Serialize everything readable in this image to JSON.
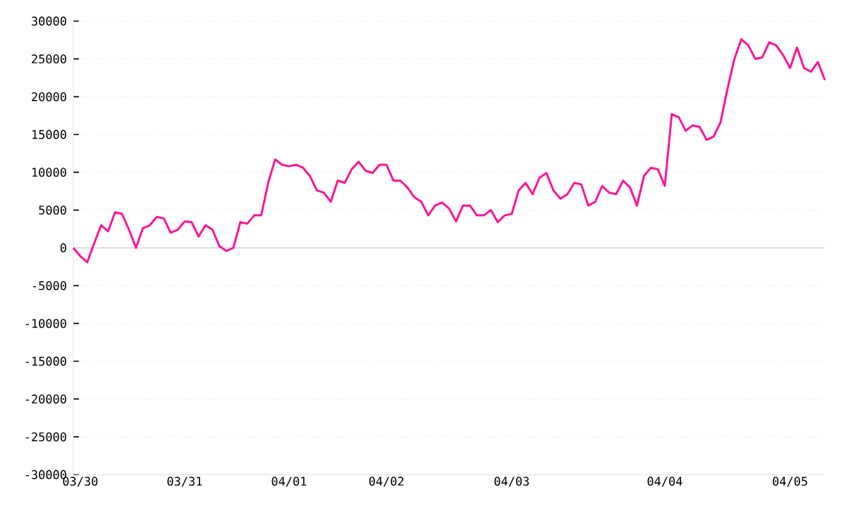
{
  "chart_data": {
    "type": "line",
    "categories": [
      null,
      "03/30",
      null,
      null,
      null,
      null,
      null,
      null,
      null,
      null,
      null,
      null,
      null,
      null,
      null,
      null,
      "03/31",
      null,
      null,
      null,
      null,
      null,
      null,
      null,
      null,
      null,
      null,
      null,
      null,
      null,
      null,
      "04/01",
      null,
      null,
      null,
      null,
      null,
      null,
      null,
      null,
      null,
      null,
      null,
      null,
      null,
      "04/02",
      null,
      null,
      null,
      null,
      null,
      null,
      null,
      null,
      null,
      null,
      null,
      null,
      null,
      null,
      null,
      null,
      null,
      "04/03",
      null,
      null,
      null,
      null,
      null,
      null,
      null,
      null,
      null,
      null,
      null,
      null,
      null,
      null,
      null,
      null,
      null,
      null,
      null,
      null,
      null,
      "04/04",
      null,
      null,
      null,
      null,
      null,
      null,
      null,
      null,
      null,
      null,
      null,
      null,
      null,
      null,
      null,
      null,
      null,
      "04/05",
      null,
      null,
      null,
      null,
      null
    ],
    "series": [
      {
        "color": "#ff1493",
        "values": [
          0,
          -1100,
          -1900,
          600,
          3000,
          2200,
          4700,
          4500,
          2400,
          0,
          2600,
          3000,
          4100,
          3900,
          2000,
          2400,
          3500,
          3400,
          1500,
          3000,
          2400,
          200,
          -400,
          0,
          3400,
          3200,
          4300,
          4300,
          8600,
          11700,
          11000,
          10800,
          11000,
          10600,
          9500,
          7600,
          7300,
          6100,
          8900,
          8600,
          10400,
          11400,
          10200,
          9900,
          11000,
          11000,
          8900,
          8900,
          8000,
          6700,
          6100,
          4300,
          5600,
          6000,
          5200,
          3500,
          5600,
          5600,
          4300,
          4300,
          5000,
          3400,
          4300,
          4500,
          7600,
          8600,
          7100,
          9300,
          9900,
          7600,
          6500,
          7100,
          8600,
          8400,
          5600,
          6100,
          8200,
          7300,
          7100,
          8900,
          8000,
          5600,
          9500,
          10600,
          10400,
          8200,
          17700,
          17300,
          15500,
          16200,
          16000,
          14300,
          14700,
          16600,
          21000,
          25000,
          27600,
          26800,
          25000,
          25200,
          27200,
          26800,
          25500,
          23800,
          26500,
          23800,
          23300,
          24600,
          22200
        ]
      }
    ],
    "ylim": [
      -30000,
      30000
    ],
    "yticks": [
      -30000,
      -25000,
      -20000,
      -15000,
      -10000,
      -5000,
      0,
      5000,
      10000,
      15000,
      20000,
      25000,
      30000
    ],
    "grid": "y",
    "ref_lines": [
      {
        "axis": "y",
        "value": 0,
        "color": "#dddddd"
      }
    ],
    "marker": "none",
    "line_style": "solid"
  }
}
